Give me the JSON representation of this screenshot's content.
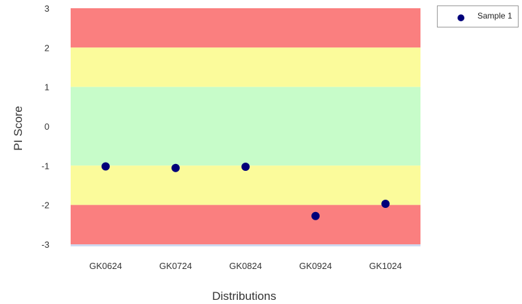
{
  "chart_data": {
    "type": "scatter",
    "categories": [
      "GK0624",
      "GK0724",
      "GK0824",
      "GK0924",
      "GK1024"
    ],
    "series": [
      {
        "name": "Sample 1",
        "values": [
          -1.02,
          -1.06,
          -1.03,
          -2.28,
          -1.97
        ]
      }
    ],
    "xlabel": "Distributions",
    "ylabel": "PI Score",
    "ylim": [
      -3,
      3
    ],
    "yticks": [
      "3",
      "2",
      "1",
      "0",
      "-1",
      "-2",
      "-3"
    ],
    "bands": [
      {
        "from": 2,
        "to": 3,
        "color": "#fa7f7f"
      },
      {
        "from": 1,
        "to": 2,
        "color": "#fbfb9b"
      },
      {
        "from": -1,
        "to": 1,
        "color": "#c7fcc9"
      },
      {
        "from": -2,
        "to": -1,
        "color": "#fbfb9b"
      },
      {
        "from": -3,
        "to": -2,
        "color": "#fa7f7f"
      }
    ],
    "marker_color": "#00007a",
    "legend_position": "top-right"
  }
}
